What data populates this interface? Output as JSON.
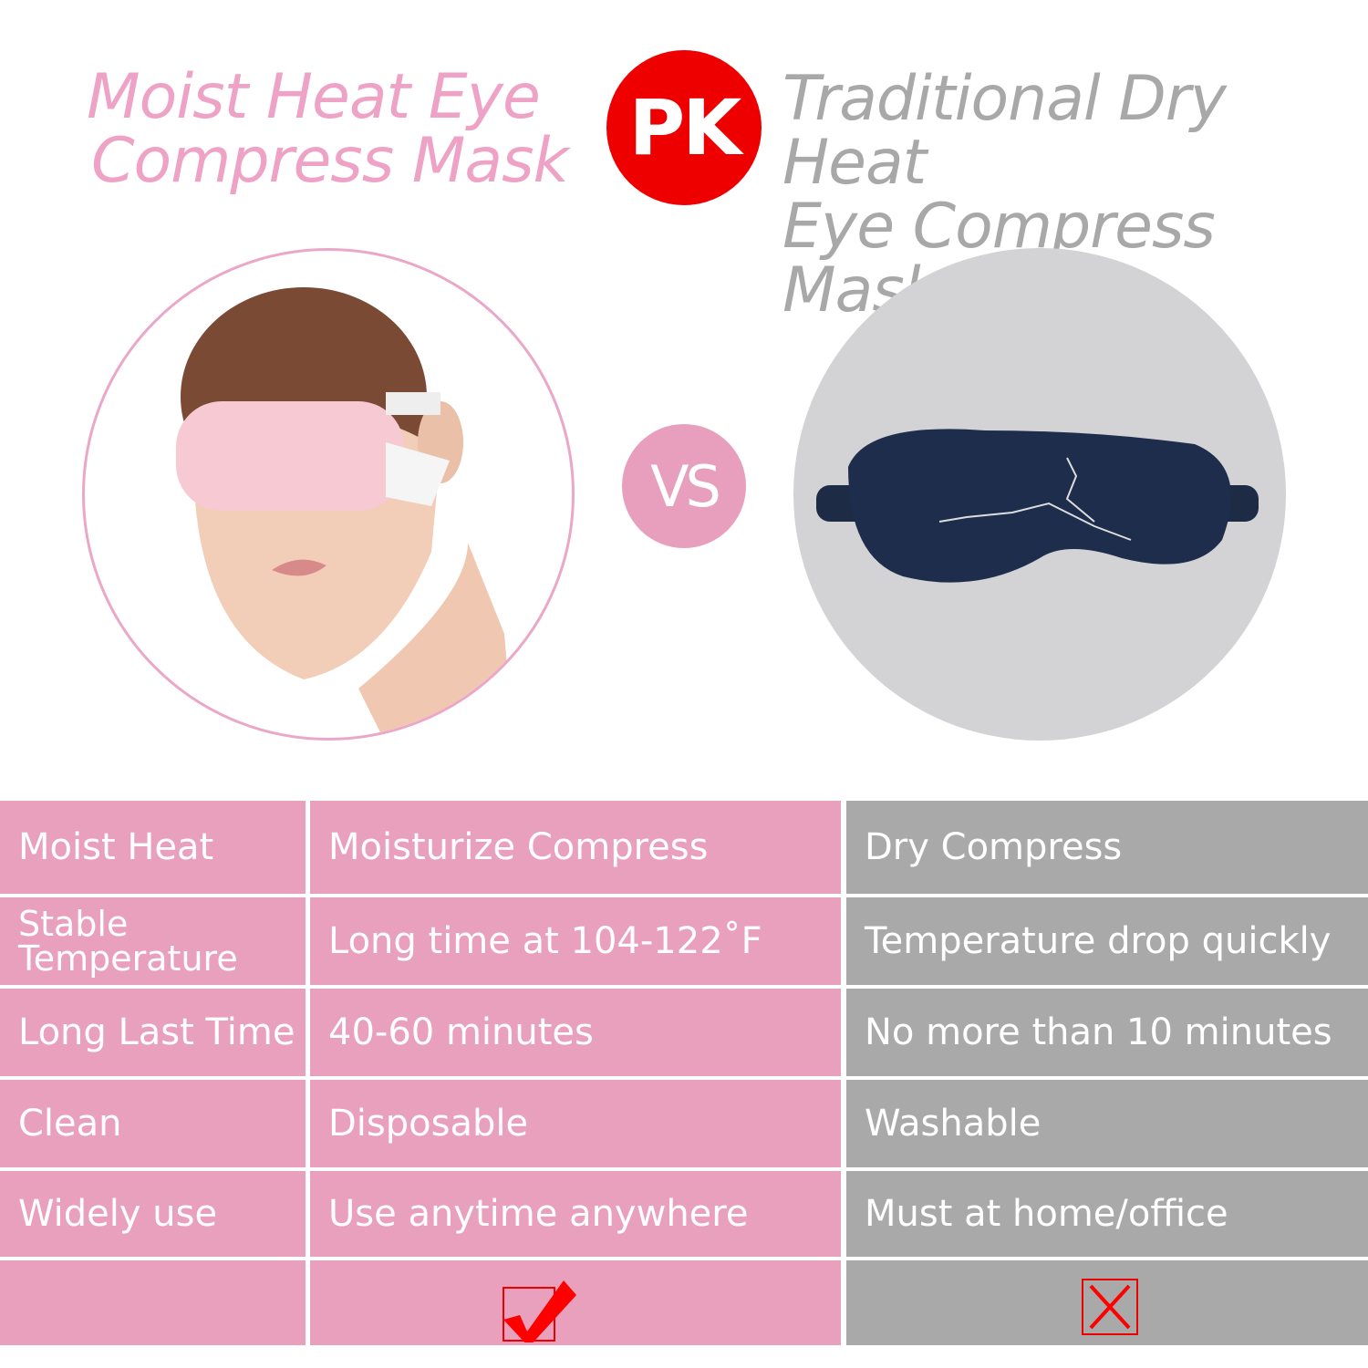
{
  "header": {
    "left_title_line1": "Moist Heat Eye",
    "left_title_line2": "Compress Mask",
    "badge": "PK",
    "right_title_line1": "Traditional Dry Heat",
    "right_title_line2": "Eye Compress Mask"
  },
  "versus": "VS",
  "colors": {
    "pink": "#e9a0bd",
    "gray": "#a9a9a9",
    "title_pink": "#eea3c6",
    "red": "#ee0000"
  },
  "table": {
    "rows": [
      {
        "feature": "Moist Heat",
        "moist": "Moisturize Compress",
        "dry": "Dry Compress"
      },
      {
        "feature": "Stable Temperature",
        "moist": "Long time at 104-122˚F",
        "dry": "Temperature drop quickly"
      },
      {
        "feature": "Long Last Time",
        "moist": "40-60 minutes",
        "dry": "No more than 10 minutes"
      },
      {
        "feature": "Clean",
        "moist": "Disposable",
        "dry": "Washable"
      },
      {
        "feature": "Widely use",
        "moist": "Use anytime anywhere",
        "dry": "Must at home/office"
      }
    ],
    "verdict": {
      "moist": "check-icon",
      "dry": "x-icon"
    }
  }
}
